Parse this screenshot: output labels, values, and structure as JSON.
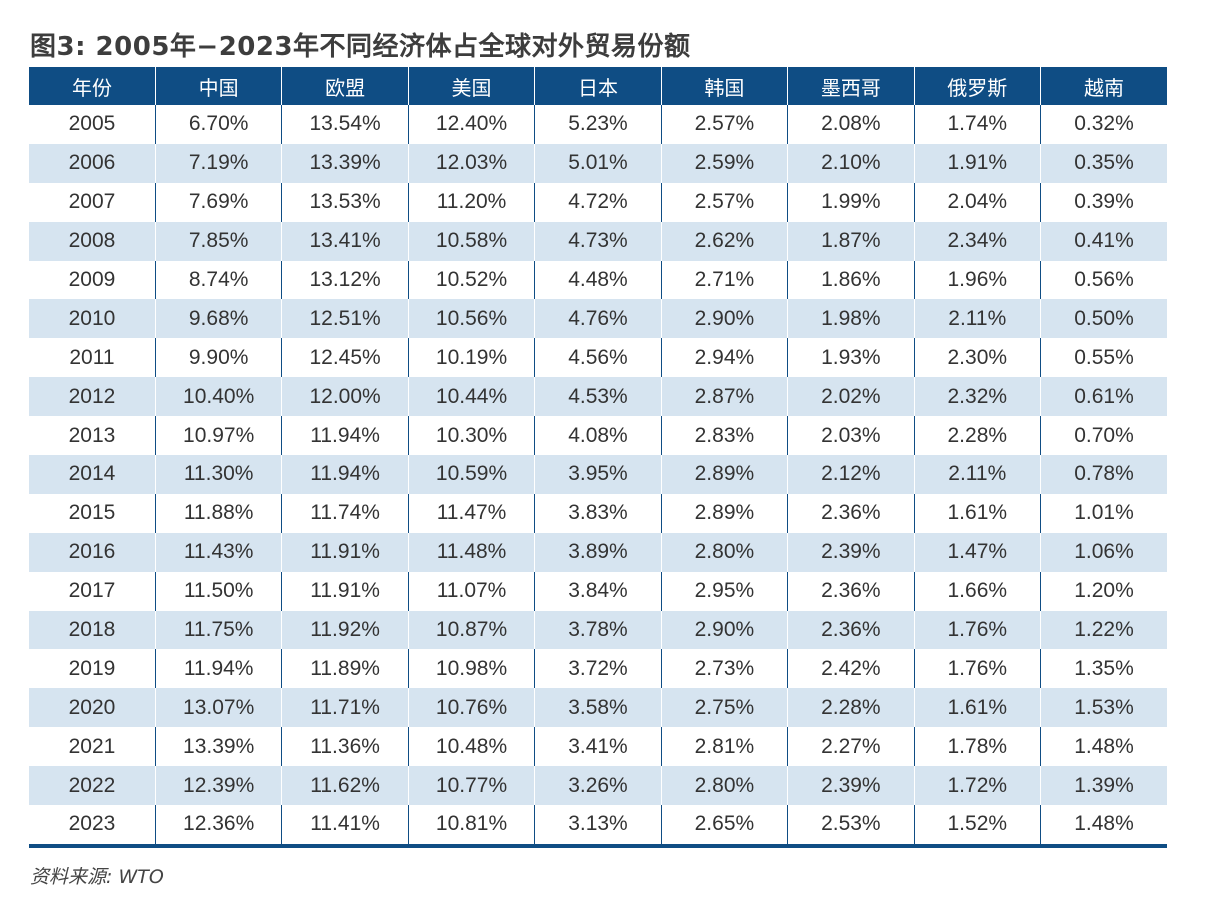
{
  "title": "图3: 2005年−2023年不同经济体占全球对外贸易份额",
  "source": "资料来源: WTO",
  "colors": {
    "header_bg": "#0f4d84",
    "stripe": "#d6e4f0"
  },
  "chart_data": {
    "type": "table",
    "columns": [
      "年份",
      "中国",
      "欧盟",
      "美国",
      "日本",
      "韩国",
      "墨西哥",
      "俄罗斯",
      "越南"
    ],
    "rows": [
      [
        "2005",
        "6.70%",
        "13.54%",
        "12.40%",
        "5.23%",
        "2.57%",
        "2.08%",
        "1.74%",
        "0.32%"
      ],
      [
        "2006",
        "7.19%",
        "13.39%",
        "12.03%",
        "5.01%",
        "2.59%",
        "2.10%",
        "1.91%",
        "0.35%"
      ],
      [
        "2007",
        "7.69%",
        "13.53%",
        "11.20%",
        "4.72%",
        "2.57%",
        "1.99%",
        "2.04%",
        "0.39%"
      ],
      [
        "2008",
        "7.85%",
        "13.41%",
        "10.58%",
        "4.73%",
        "2.62%",
        "1.87%",
        "2.34%",
        "0.41%"
      ],
      [
        "2009",
        "8.74%",
        "13.12%",
        "10.52%",
        "4.48%",
        "2.71%",
        "1.86%",
        "1.96%",
        "0.56%"
      ],
      [
        "2010",
        "9.68%",
        "12.51%",
        "10.56%",
        "4.76%",
        "2.90%",
        "1.98%",
        "2.11%",
        "0.50%"
      ],
      [
        "2011",
        "9.90%",
        "12.45%",
        "10.19%",
        "4.56%",
        "2.94%",
        "1.93%",
        "2.30%",
        "0.55%"
      ],
      [
        "2012",
        "10.40%",
        "12.00%",
        "10.44%",
        "4.53%",
        "2.87%",
        "2.02%",
        "2.32%",
        "0.61%"
      ],
      [
        "2013",
        "10.97%",
        "11.94%",
        "10.30%",
        "4.08%",
        "2.83%",
        "2.03%",
        "2.28%",
        "0.70%"
      ],
      [
        "2014",
        "11.30%",
        "11.94%",
        "10.59%",
        "3.95%",
        "2.89%",
        "2.12%",
        "2.11%",
        "0.78%"
      ],
      [
        "2015",
        "11.88%",
        "11.74%",
        "11.47%",
        "3.83%",
        "2.89%",
        "2.36%",
        "1.61%",
        "1.01%"
      ],
      [
        "2016",
        "11.43%",
        "11.91%",
        "11.48%",
        "3.89%",
        "2.80%",
        "2.39%",
        "1.47%",
        "1.06%"
      ],
      [
        "2017",
        "11.50%",
        "11.91%",
        "11.07%",
        "3.84%",
        "2.95%",
        "2.36%",
        "1.66%",
        "1.20%"
      ],
      [
        "2018",
        "11.75%",
        "11.92%",
        "10.87%",
        "3.78%",
        "2.90%",
        "2.36%",
        "1.76%",
        "1.22%"
      ],
      [
        "2019",
        "11.94%",
        "11.89%",
        "10.98%",
        "3.72%",
        "2.73%",
        "2.42%",
        "1.76%",
        "1.35%"
      ],
      [
        "2020",
        "13.07%",
        "11.71%",
        "10.76%",
        "3.58%",
        "2.75%",
        "2.28%",
        "1.61%",
        "1.53%"
      ],
      [
        "2021",
        "13.39%",
        "11.36%",
        "10.48%",
        "3.41%",
        "2.81%",
        "2.27%",
        "1.78%",
        "1.48%"
      ],
      [
        "2022",
        "12.39%",
        "11.62%",
        "10.77%",
        "3.26%",
        "2.80%",
        "2.39%",
        "1.72%",
        "1.39%"
      ],
      [
        "2023",
        "12.36%",
        "11.41%",
        "10.81%",
        "3.13%",
        "2.65%",
        "2.53%",
        "1.52%",
        "1.48%"
      ]
    ]
  }
}
